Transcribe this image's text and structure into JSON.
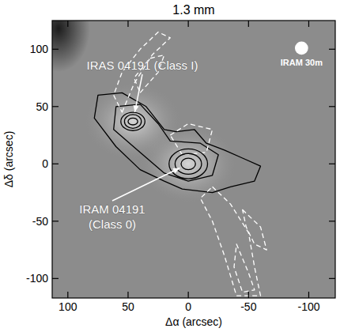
{
  "chart_data": {
    "type": "contour",
    "title": "1.3 mm",
    "x_label": "Δα (arcsec)",
    "y_label": "Δδ (arcsec)",
    "xlim": [
      113,
      -122
    ],
    "ylim": [
      -117,
      125
    ],
    "xticks": [
      100,
      50,
      0,
      -50,
      -100
    ],
    "yticks": [
      100,
      50,
      0,
      -50,
      -100
    ],
    "sources": [
      {
        "label_lines": [
          "IRAS 04191 (Class I)"
        ],
        "x": 46,
        "y": 37
      },
      {
        "label_lines": [
          "IRAM 04191",
          "(Class 0)"
        ],
        "x": 0,
        "y": 0
      }
    ],
    "beam": {
      "label": "IRAM 30m",
      "x": -94,
      "y": 101,
      "diameter": 11
    },
    "ellipses": [
      {
        "x": 0,
        "y": 0,
        "rx": 6,
        "ry": 5,
        "color": "#000000",
        "line_style": "solid"
      },
      {
        "x": 0,
        "y": 0,
        "rx": 11,
        "ry": 9,
        "color": "#000000",
        "line_style": "solid"
      },
      {
        "x": 0,
        "y": 0,
        "rx": 16,
        "ry": 13,
        "color": "#000000",
        "line_style": "solid"
      },
      {
        "x": 46,
        "y": 37,
        "rx": 4,
        "ry": 3,
        "color": "#000000",
        "line_style": "solid"
      },
      {
        "x": 46,
        "y": 37,
        "rx": 7,
        "ry": 6,
        "color": "#000000",
        "line_style": "solid"
      },
      {
        "x": 46,
        "y": 37,
        "rx": 10,
        "ry": 8,
        "color": "#000000",
        "line_style": "solid"
      }
    ],
    "contours": [
      {
        "x": [
          75,
          55,
          35,
          20,
          10,
          -5,
          -15,
          -30,
          -45,
          -60,
          -55,
          -35,
          -20,
          5,
          20,
          40,
          60,
          78
        ],
        "y": [
          60,
          62,
          50,
          30,
          28,
          30,
          18,
          12,
          5,
          -2,
          -15,
          -20,
          -25,
          -22,
          -15,
          -5,
          15,
          40
        ],
        "color": "#000000",
        "line_style": "solid"
      },
      {
        "x": [
          60,
          40,
          25,
          15,
          -10,
          -25,
          -20,
          0,
          20,
          40,
          62
        ],
        "y": [
          50,
          52,
          35,
          20,
          18,
          8,
          -10,
          -15,
          -8,
          10,
          30
        ],
        "color": "#000000",
        "line_style": "solid"
      },
      {
        "x": [
          55,
          45,
          30,
          15,
          25,
          40,
          55,
          62
        ],
        "y": [
          45,
          70,
          95,
          110,
          115,
          100,
          80,
          60
        ],
        "color": "#ffffff",
        "line_style": "dashed"
      },
      {
        "x": [
          40,
          25,
          20,
          32,
          45
        ],
        "y": [
          62,
          80,
          95,
          92,
          75
        ],
        "color": "#ffffff",
        "line_style": "dashed"
      },
      {
        "x": [
          15,
          0,
          -20,
          -15,
          5
        ],
        "y": [
          25,
          35,
          30,
          10,
          8
        ],
        "color": "#ffffff",
        "line_style": "dashed"
      },
      {
        "x": [
          -20,
          -35,
          -50,
          -55,
          -60,
          -40,
          -30,
          -20,
          -10
        ],
        "y": [
          -20,
          -35,
          -60,
          -90,
          -115,
          -115,
          -80,
          -50,
          -30
        ],
        "color": "#ffffff",
        "line_style": "dashed"
      },
      {
        "x": [
          -40,
          -50,
          -55,
          -45,
          -38
        ],
        "y": [
          -70,
          -95,
          -110,
          -112,
          -90
        ],
        "color": "#ffffff",
        "line_style": "dashed"
      },
      {
        "x": [
          -45,
          -60,
          -65,
          -55,
          -48
        ],
        "y": [
          -40,
          -55,
          -75,
          -70,
          -55
        ],
        "color": "#ffffff",
        "line_style": "dashed"
      }
    ]
  }
}
